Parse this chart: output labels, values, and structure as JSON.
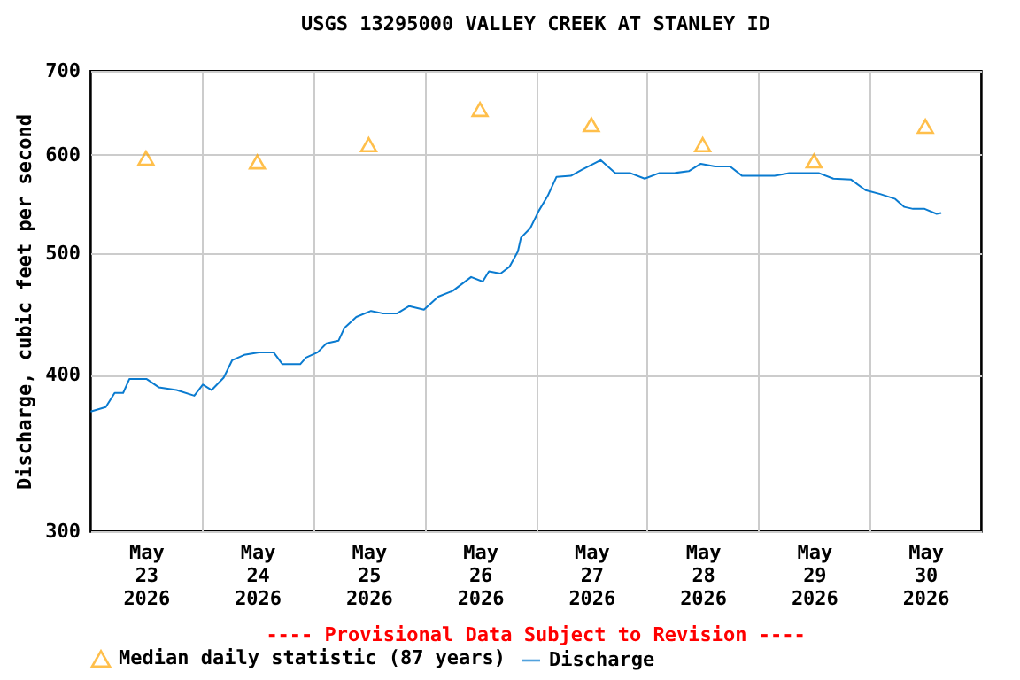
{
  "chart_data": {
    "type": "line",
    "title": "USGS 13295000 VALLEY CREEK AT STANLEY ID",
    "ylabel": "Discharge, cubic feet per second",
    "annotations": [
      "---- Provisional Data Subject to Revision ----"
    ],
    "log": true,
    "grid": true,
    "legend": "bottom",
    "xlim": [
      "2026-05-23T00:00",
      "2026-05-31T00:00"
    ],
    "xticks": [
      {
        "value": "2026-05-23T12:00",
        "label": "May 23 2026"
      },
      {
        "value": "2026-05-24T12:00",
        "label": "May 24 2026"
      },
      {
        "value": "2026-05-25T12:00",
        "label": "May 25 2026"
      },
      {
        "value": "2026-05-26T12:00",
        "label": "May 26 2026"
      },
      {
        "value": "2026-05-27T12:00",
        "label": "May 27 2026"
      },
      {
        "value": "2026-05-28T12:00",
        "label": "May 28 2026"
      },
      {
        "value": "2026-05-29T12:00",
        "label": "May 29 2026"
      },
      {
        "value": "2026-05-30T12:00",
        "label": "May 30 2026"
      },
      {
        "value": "2026-05-24T00:00",
        "label": null
      },
      {
        "value": "2026-05-25T00:00",
        "label": null
      },
      {
        "value": "2026-05-26T00:00",
        "label": null
      },
      {
        "value": "2026-05-27T00:00",
        "label": null
      },
      {
        "value": "2026-05-28T00:00",
        "label": null
      },
      {
        "value": "2026-05-29T00:00",
        "label": null
      },
      {
        "value": "2026-05-30T00:00",
        "label": null
      }
    ],
    "ylim": [
      300,
      700
    ],
    "yticks": [
      300,
      400,
      500,
      600,
      700
    ],
    "series": [
      {
        "name": "Median daily statistic (87 years)",
        "type": "scatter",
        "marker": "triangle",
        "color": "#ffa500",
        "x": [
          "2026-05-23T12:00",
          "2026-05-24T12:00",
          "2026-05-25T12:00",
          "2026-05-26T12:00",
          "2026-05-27T12:00",
          "2026-05-28T12:00",
          "2026-05-29T12:00",
          "2026-05-30T12:00"
        ],
        "values": [
          596,
          592,
          611,
          652,
          634,
          611,
          593,
          632
        ]
      },
      {
        "name": "Discharge",
        "type": "line",
        "color": "#0a7bd0",
        "x": [
          "2026-05-23T00:05",
          "2026-05-23T03:20",
          "2026-05-23T05:15",
          "2026-05-23T07:05",
          "2026-05-23T08:25",
          "2026-05-23T12:10",
          "2026-05-23T14:45",
          "2026-05-23T18:35",
          "2026-05-23T22:25",
          "2026-05-24T00:15",
          "2026-05-24T02:10",
          "2026-05-24T04:45",
          "2026-05-24T06:35",
          "2026-05-24T09:10",
          "2026-05-24T12:20",
          "2026-05-24T15:30",
          "2026-05-24T17:25",
          "2026-05-24T21:15",
          "2026-05-24T22:30",
          "2026-05-25T01:00",
          "2026-05-25T02:55",
          "2026-05-25T05:30",
          "2026-05-25T06:45",
          "2026-05-25T09:20",
          "2026-05-25T12:30",
          "2026-05-25T15:00",
          "2026-05-25T18:10",
          "2026-05-25T20:45",
          "2026-05-25T23:55",
          "2026-05-26T03:00",
          "2026-05-26T06:10",
          "2026-05-26T10:05",
          "2026-05-26T12:35",
          "2026-05-26T13:55",
          "2026-05-26T16:25",
          "2026-05-26T18:20",
          "2026-05-26T20:10",
          "2026-05-26T20:50",
          "2026-05-26T22:50",
          "2026-05-27T00:40",
          "2026-05-27T02:35",
          "2026-05-27T04:30",
          "2026-05-27T07:35",
          "2026-05-27T10:10",
          "2026-05-27T14:00",
          "2026-05-27T17:10",
          "2026-05-27T20:20",
          "2026-05-27T23:30",
          "2026-05-28T02:40",
          "2026-05-28T05:55",
          "2026-05-28T09:00",
          "2026-05-28T11:35",
          "2026-05-28T14:40",
          "2026-05-28T17:55",
          "2026-05-28T20:30",
          "2026-05-29T00:25",
          "2026-05-29T03:30",
          "2026-05-29T06:40",
          "2026-05-29T09:10",
          "2026-05-29T13:00",
          "2026-05-29T16:10",
          "2026-05-29T20:00",
          "2026-05-29T23:05",
          "2026-05-30T02:15",
          "2026-05-30T05:30",
          "2026-05-30T07:25",
          "2026-05-30T09:20",
          "2026-05-30T11:50",
          "2026-05-30T14:25",
          "2026-05-30T15:25"
        ],
        "values": [
          374,
          377,
          387,
          387,
          397,
          397,
          391,
          389,
          385,
          393,
          389,
          398,
          411,
          415,
          417,
          417,
          408,
          408,
          413,
          417,
          424,
          426,
          436,
          445,
          450,
          448,
          448,
          454,
          451,
          462,
          467,
          479,
          475,
          484,
          482,
          488,
          502,
          515,
          524,
          541,
          556,
          576,
          577,
          584,
          594,
          580,
          580,
          574,
          580,
          580,
          582,
          590,
          587,
          587,
          577,
          577,
          577,
          580,
          580,
          580,
          574,
          573,
          562,
          558,
          553,
          545,
          543,
          543,
          538,
          539
        ]
      }
    ]
  }
}
